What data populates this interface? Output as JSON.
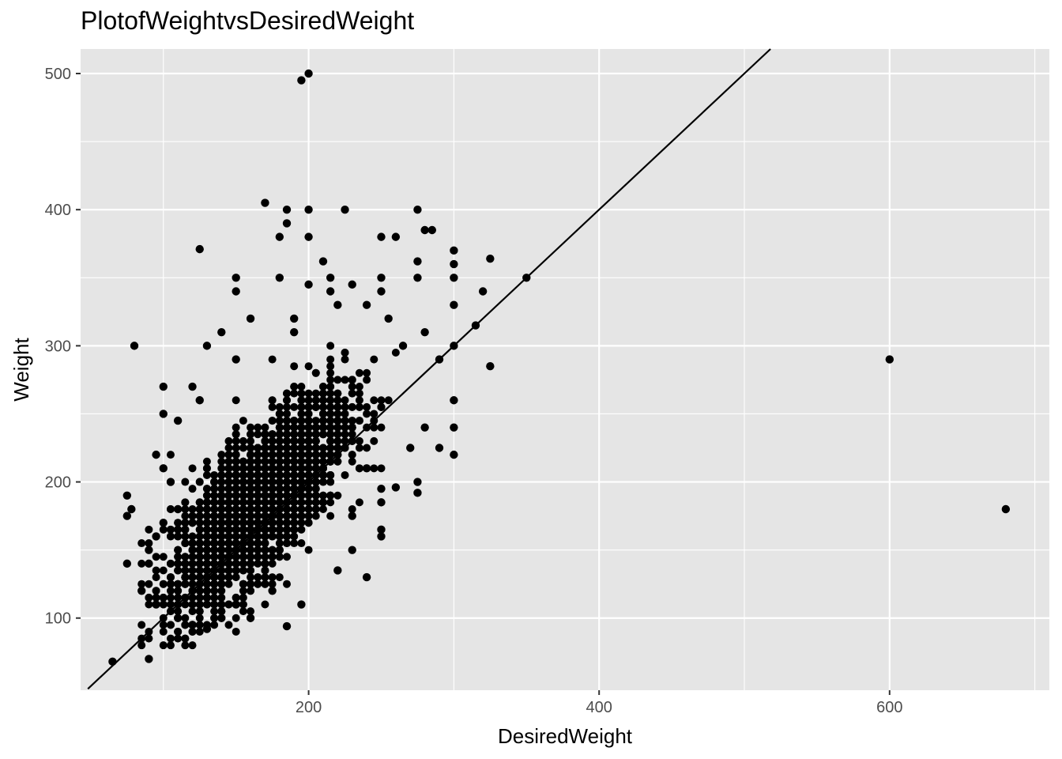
{
  "chart_data": {
    "type": "scatter",
    "title": "PlotofWeightvsDesiredWeight",
    "xlabel": "DesiredWeight",
    "ylabel": "Weight",
    "xlim": [
      43,
      710
    ],
    "ylim": [
      47,
      518
    ],
    "x_ticks": [
      200,
      400,
      600
    ],
    "y_ticks": [
      100,
      200,
      300,
      400,
      500
    ],
    "x_minor": [
      100,
      300,
      500,
      700
    ],
    "y_minor": [
      150,
      250,
      350,
      450
    ],
    "grid": true,
    "reference_line": {
      "slope": 1,
      "intercept": 0,
      "color": "#000000"
    },
    "point_color": "#000000",
    "panel_color": "#e5e5e5",
    "dense_cluster": {
      "x_center": 165,
      "y_center": 185,
      "note_count": 7000
    },
    "points": [
      [
        200,
        500
      ],
      [
        195,
        495
      ],
      [
        170,
        405
      ],
      [
        185,
        400
      ],
      [
        200,
        400
      ],
      [
        225,
        400
      ],
      [
        185,
        390
      ],
      [
        180,
        380
      ],
      [
        200,
        380
      ],
      [
        125,
        371
      ],
      [
        250,
        380
      ],
      [
        260,
        380
      ],
      [
        275,
        400
      ],
      [
        280,
        385
      ],
      [
        285,
        385
      ],
      [
        300,
        370
      ],
      [
        300,
        360
      ],
      [
        325,
        364
      ],
      [
        350,
        350
      ],
      [
        275,
        362
      ],
      [
        275,
        350
      ],
      [
        300,
        350
      ],
      [
        300,
        330
      ],
      [
        320,
        340
      ],
      [
        315,
        315
      ],
      [
        325,
        285
      ],
      [
        300,
        300
      ],
      [
        290,
        290
      ],
      [
        600,
        290
      ],
      [
        680,
        180
      ],
      [
        80,
        300
      ],
      [
        75,
        190
      ],
      [
        78,
        180
      ],
      [
        75,
        175
      ],
      [
        75,
        140
      ],
      [
        65,
        68
      ],
      [
        90,
        70
      ],
      [
        100,
        270
      ],
      [
        90,
        150
      ],
      [
        100,
        250
      ],
      [
        95,
        220
      ],
      [
        185,
        94
      ],
      [
        240,
        130
      ],
      [
        220,
        135
      ],
      [
        195,
        110
      ],
      [
        175,
        120
      ],
      [
        160,
        100
      ],
      [
        270,
        225
      ],
      [
        290,
        225
      ],
      [
        300,
        220
      ],
      [
        300,
        240
      ],
      [
        300,
        260
      ],
      [
        280,
        240
      ],
      [
        275,
        192
      ],
      [
        275,
        200
      ],
      [
        260,
        196
      ],
      [
        250,
        185
      ],
      [
        250,
        195
      ],
      [
        250,
        160
      ],
      [
        250,
        165
      ],
      [
        230,
        150
      ],
      [
        230,
        175
      ],
      [
        240,
        210
      ],
      [
        220,
        220
      ],
      [
        150,
        350
      ],
      [
        150,
        340
      ],
      [
        160,
        320
      ],
      [
        180,
        350
      ],
      [
        200,
        345
      ],
      [
        215,
        350
      ],
      [
        215,
        340
      ],
      [
        230,
        345
      ],
      [
        250,
        350
      ],
      [
        250,
        340
      ],
      [
        255,
        320
      ],
      [
        265,
        300
      ],
      [
        280,
        310
      ],
      [
        190,
        320
      ],
      [
        210,
        362
      ],
      [
        220,
        330
      ],
      [
        240,
        330
      ],
      [
        190,
        310
      ],
      [
        130,
        300
      ],
      [
        140,
        310
      ],
      [
        150,
        290
      ],
      [
        120,
        270
      ],
      [
        125,
        260
      ],
      [
        110,
        245
      ],
      [
        100,
        210
      ],
      [
        105,
        200
      ],
      [
        110,
        180
      ],
      [
        100,
        170
      ],
      [
        95,
        160
      ],
      [
        90,
        140
      ],
      [
        85,
        120
      ],
      [
        95,
        110
      ],
      [
        110,
        100
      ],
      [
        120,
        95
      ],
      [
        130,
        92
      ],
      [
        140,
        100
      ],
      [
        150,
        110
      ],
      [
        160,
        125
      ],
      [
        170,
        140
      ],
      [
        180,
        150
      ]
    ]
  }
}
